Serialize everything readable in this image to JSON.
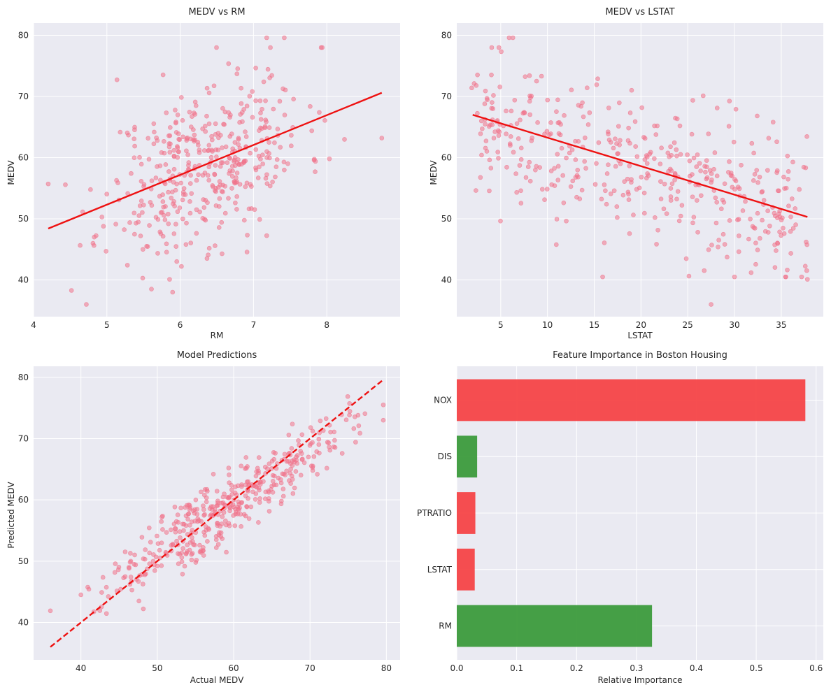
{
  "chart_data": [
    {
      "type": "scatter",
      "title": "MEDV vs RM",
      "xlabel": "RM",
      "ylabel": "MEDV",
      "xlim": [
        4.0,
        9.0
      ],
      "ylim": [
        34,
        82
      ],
      "xticks": [
        4,
        5,
        6,
        7,
        8
      ],
      "yticks": [
        40,
        50,
        60,
        70,
        80
      ],
      "xtick_labels": [
        "4",
        "5",
        "6",
        "7",
        "8"
      ],
      "ytick_labels": [
        "40",
        "50",
        "60",
        "70",
        "80"
      ],
      "grid": true,
      "point_color": "#f0728a",
      "line_color": "#ee1111",
      "n_points": 420,
      "trend_line": {
        "x": [
          4.2,
          8.75
        ],
        "y": [
          48.4,
          70.6
        ],
        "style": "solid"
      },
      "extremes": [
        [
          4.2,
          55.7
        ],
        [
          4.72,
          36.0
        ],
        [
          7.18,
          79.6
        ],
        [
          7.42,
          79.6
        ],
        [
          8.75,
          63.2
        ]
      ]
    },
    {
      "type": "scatter",
      "title": "MEDV vs LSTAT",
      "xlabel": "LSTAT",
      "ylabel": "MEDV",
      "xlim": [
        0.3,
        39.5
      ],
      "ylim": [
        34,
        82
      ],
      "xticks": [
        5,
        10,
        15,
        20,
        25,
        30,
        35
      ],
      "yticks": [
        40,
        50,
        60,
        70,
        80
      ],
      "xtick_labels": [
        "5",
        "10",
        "15",
        "20",
        "25",
        "30",
        "35"
      ],
      "ytick_labels": [
        "40",
        "50",
        "60",
        "70",
        "80"
      ],
      "grid": true,
      "point_color": "#f0728a",
      "line_color": "#ee1111",
      "n_points": 420,
      "trend_line": {
        "x": [
          2.0,
          37.8
        ],
        "y": [
          67.0,
          50.3
        ],
        "style": "solid"
      },
      "extremes": [
        [
          5.9,
          79.6
        ],
        [
          6.3,
          79.6
        ],
        [
          27.5,
          36.0
        ],
        [
          37.8,
          40.1
        ],
        [
          1.9,
          71.4
        ]
      ]
    },
    {
      "type": "scatter",
      "title": "Model Predictions",
      "xlabel": "Actual MEDV",
      "ylabel": "Predicted MEDV",
      "xlim": [
        33.8,
        81.8
      ],
      "ylim": [
        33.9,
        81.8
      ],
      "xticks": [
        40,
        50,
        60,
        70,
        80
      ],
      "yticks": [
        40,
        50,
        60,
        70,
        80
      ],
      "xtick_labels": [
        "40",
        "50",
        "60",
        "70",
        "80"
      ],
      "ytick_labels": [
        "40",
        "50",
        "60",
        "70",
        "80"
      ],
      "grid": true,
      "point_color": "#f0728a",
      "line_color": "#ee1111",
      "n_points": 420,
      "trend_line": {
        "x": [
          36.0,
          79.6
        ],
        "y": [
          36.0,
          79.6
        ],
        "style": "dashed"
      },
      "extremes": [
        [
          36.0,
          41.9
        ],
        [
          79.6,
          75.5
        ],
        [
          79.6,
          73.0
        ],
        [
          47.6,
          43.5
        ]
      ]
    },
    {
      "type": "bar",
      "orientation": "horizontal",
      "title": "Feature Importance in Boston Housing",
      "xlabel": "Relative Importance",
      "ylabel": "",
      "categories": [
        "RM",
        "LSTAT",
        "PTRATIO",
        "DIS",
        "NOX"
      ],
      "values": [
        0.326,
        0.03,
        0.031,
        0.034,
        0.582
      ],
      "colors": [
        "#3c9b3c",
        "#f54447",
        "#f54447",
        "#3c9b3c",
        "#f54447"
      ],
      "xlim": [
        0.0,
        0.612
      ],
      "xticks": [
        0.0,
        0.1,
        0.2,
        0.3,
        0.4,
        0.5,
        0.6
      ],
      "xtick_labels": [
        "0.0",
        "0.1",
        "0.2",
        "0.3",
        "0.4",
        "0.5",
        "0.6"
      ],
      "grid": true
    }
  ]
}
